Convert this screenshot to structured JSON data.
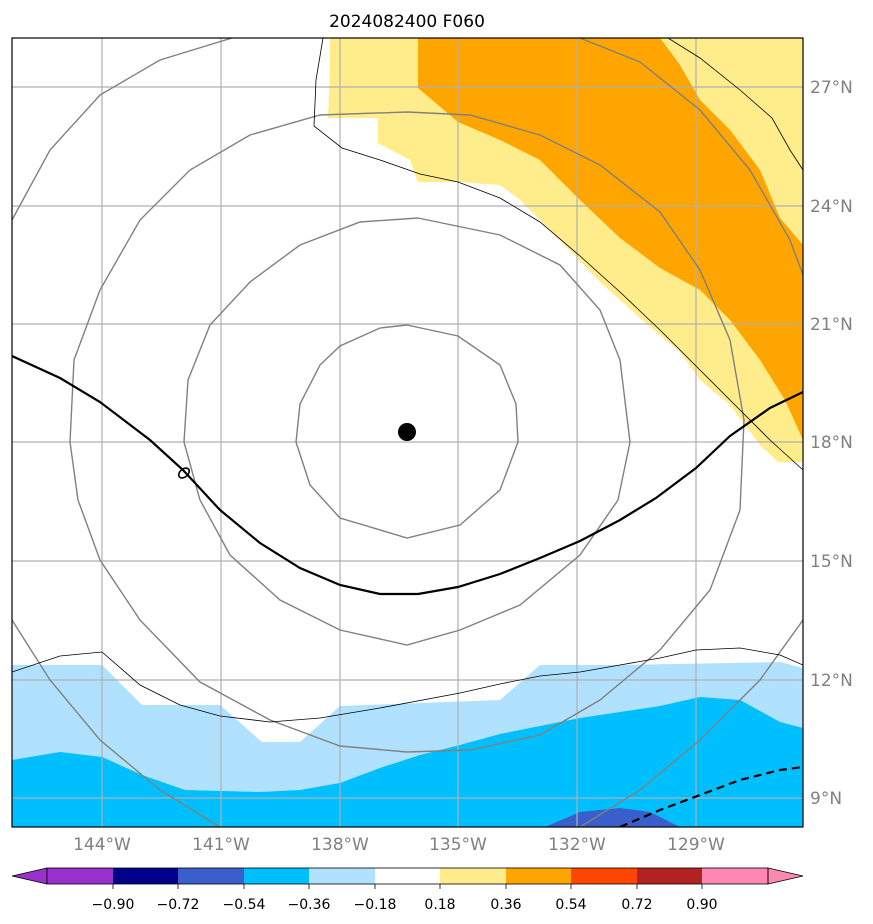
{
  "title": "2024082400 F060",
  "axes": {
    "lat_labels": [
      "27°N",
      "24°N",
      "21°N",
      "18°N",
      "15°N",
      "12°N",
      "9°N"
    ],
    "lon_labels": [
      "144°W",
      "141°W",
      "138°W",
      "135°W",
      "132°W",
      "129°W"
    ]
  },
  "colorbar": {
    "labels": [
      "−0.90",
      "−0.72",
      "−0.54",
      "−0.36",
      "−0.18",
      "0.18",
      "0.36",
      "0.54",
      "0.72",
      "0.90"
    ],
    "colors": [
      "#9932cc",
      "#00008b",
      "#3a5fcd",
      "#00bfff",
      "#b0e2ff",
      "#ffffff",
      "#ffec8b",
      "#ffa500",
      "#ff4500",
      "#b22222",
      "#ff88b3"
    ]
  },
  "storm_center": {
    "lat": 18.3,
    "lon": -135.7
  },
  "colors": {
    "yellow": "#ffec8b",
    "orange": "#ffa500",
    "lightblue": "#b0e2ff",
    "deepsky": "#00bfff",
    "royalblue": "#3a5fcd",
    "grid": "#b0b0b0",
    "ring": "#808080"
  }
}
